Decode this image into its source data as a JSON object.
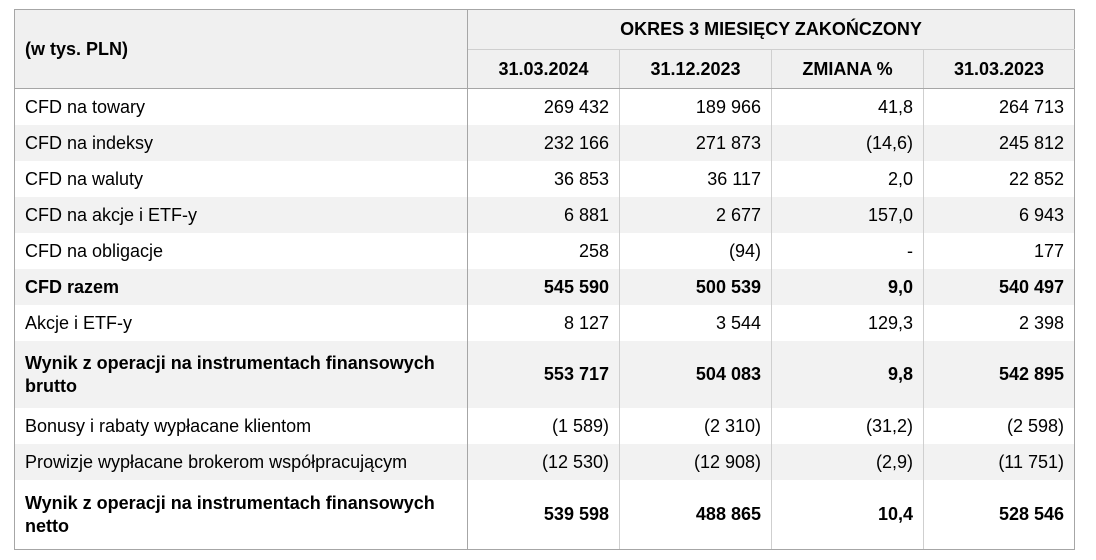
{
  "header": {
    "unit_label": "(w tys. PLN)",
    "period_label": "OKRES 3 MIESIĘCY ZAKOŃCZONY",
    "columns": [
      "31.03.2024",
      "31.12.2023",
      "ZMIANA %",
      "31.03.2023"
    ]
  },
  "rows": [
    {
      "label": "CFD na towary",
      "values": [
        "269 432",
        "189 966",
        "41,8",
        "264 713"
      ]
    },
    {
      "label": "CFD na indeksy",
      "values": [
        "232 166",
        "271 873",
        "(14,6)",
        "245 812"
      ]
    },
    {
      "label": "CFD na waluty",
      "values": [
        "36 853",
        "36 117",
        "2,0",
        "22 852"
      ]
    },
    {
      "label": "CFD na akcje i ETF-y",
      "values": [
        "6 881",
        "2 677",
        "157,0",
        "6 943"
      ]
    },
    {
      "label": "CFD na obligacje",
      "values": [
        "258",
        "(94)",
        "-",
        "177"
      ]
    },
    {
      "label": "CFD razem",
      "values": [
        "545 590",
        "500 539",
        "9,0",
        "540 497"
      ],
      "bold": true
    },
    {
      "label": "Akcje i ETF-y",
      "values": [
        "8 127",
        "3 544",
        "129,3",
        "2 398"
      ]
    },
    {
      "label": "Wynik z operacji na instrumentach finansowych brutto",
      "values": [
        "553 717",
        "504 083",
        "9,8",
        "542 895"
      ],
      "bold": true
    },
    {
      "label": "Bonusy i rabaty wypłacane klientom",
      "values": [
        "(1 589)",
        "(2 310)",
        "(31,2)",
        "(2 598)"
      ]
    },
    {
      "label": "Prowizje wypłacane brokerom współpracującym",
      "values": [
        "(12 530)",
        "(12 908)",
        "(2,9)",
        "(11 751)"
      ]
    },
    {
      "label": "Wynik z operacji na instrumentach finansowych netto",
      "values": [
        "539 598",
        "488 865",
        "10,4",
        "528 546"
      ],
      "bold": true
    }
  ]
}
